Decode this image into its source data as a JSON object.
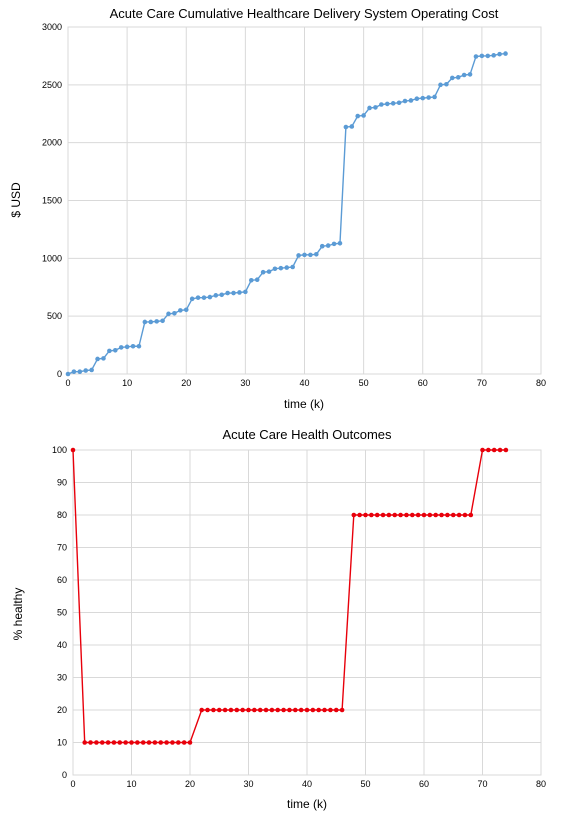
{
  "chart_data": [
    {
      "type": "line",
      "title": "Acute Care Cumulative Healthcare Delivery System Operating Cost",
      "xlabel": "time (k)",
      "ylabel": "$ USD",
      "xlim": [
        0,
        80
      ],
      "ylim": [
        0,
        3000
      ],
      "x_ticks": [
        "0",
        "10",
        "20",
        "30",
        "40",
        "50",
        "60",
        "70",
        "80"
      ],
      "y_ticks": [
        "0",
        "500",
        "1000",
        "1500",
        "2000",
        "2500",
        "3000"
      ],
      "grid": true,
      "legend": "none",
      "series": [
        {
          "color": "#5b9bd5",
          "x": [
            0,
            1,
            2,
            3,
            4,
            5,
            6,
            7,
            8,
            9,
            10,
            11,
            12,
            13,
            14,
            15,
            16,
            17,
            18,
            19,
            20,
            21,
            22,
            23,
            24,
            25,
            26,
            27,
            28,
            29,
            30,
            31,
            32,
            33,
            34,
            35,
            36,
            37,
            38,
            39,
            40,
            41,
            42,
            43,
            44,
            45,
            46,
            47,
            48,
            49,
            50,
            51,
            52,
            53,
            54,
            55,
            56,
            57,
            58,
            59,
            60,
            61,
            62,
            63,
            64,
            65,
            66,
            67,
            68,
            69,
            70,
            71,
            72,
            73,
            74
          ],
          "y": [
            0,
            20,
            20,
            30,
            35,
            130,
            135,
            200,
            205,
            230,
            235,
            240,
            240,
            450,
            450,
            455,
            460,
            520,
            525,
            550,
            555,
            650,
            660,
            660,
            665,
            680,
            685,
            700,
            700,
            705,
            710,
            810,
            815,
            880,
            885,
            910,
            915,
            920,
            925,
            1025,
            1030,
            1030,
            1035,
            1105,
            1110,
            1125,
            1130,
            2135,
            2140,
            2230,
            2235,
            2300,
            2305,
            2330,
            2335,
            2340,
            2345,
            2360,
            2365,
            2380,
            2385,
            2390,
            2395,
            2500,
            2505,
            2560,
            2565,
            2585,
            2590,
            2745,
            2750,
            2750,
            2755,
            2765,
            2770
          ]
        }
      ]
    },
    {
      "type": "line",
      "title": "Acute Care Health Outcomes",
      "xlabel": "time (k)",
      "ylabel": "% healthy",
      "xlim": [
        0,
        80
      ],
      "ylim": [
        0,
        100
      ],
      "x_ticks": [
        "0",
        "10",
        "20",
        "30",
        "40",
        "50",
        "60",
        "70",
        "80"
      ],
      "y_ticks": [
        "0",
        "10",
        "20",
        "30",
        "40",
        "50",
        "60",
        "70",
        "80",
        "90",
        "100"
      ],
      "grid": true,
      "legend": "none",
      "series": [
        {
          "color": "#e8000b",
          "x": [
            0,
            2,
            3,
            4,
            5,
            6,
            7,
            8,
            9,
            10,
            11,
            12,
            13,
            14,
            15,
            16,
            17,
            18,
            19,
            20,
            22,
            23,
            24,
            25,
            26,
            27,
            28,
            29,
            30,
            31,
            32,
            33,
            34,
            35,
            36,
            37,
            38,
            39,
            40,
            41,
            42,
            43,
            44,
            45,
            46,
            48,
            49,
            50,
            51,
            52,
            53,
            54,
            55,
            56,
            57,
            58,
            59,
            60,
            61,
            62,
            63,
            64,
            65,
            66,
            67,
            68,
            70,
            71,
            72,
            73,
            74
          ],
          "y": [
            100,
            10,
            10,
            10,
            10,
            10,
            10,
            10,
            10,
            10,
            10,
            10,
            10,
            10,
            10,
            10,
            10,
            10,
            10,
            10,
            20,
            20,
            20,
            20,
            20,
            20,
            20,
            20,
            20,
            20,
            20,
            20,
            20,
            20,
            20,
            20,
            20,
            20,
            20,
            20,
            20,
            20,
            20,
            20,
            20,
            80,
            80,
            80,
            80,
            80,
            80,
            80,
            80,
            80,
            80,
            80,
            80,
            80,
            80,
            80,
            80,
            80,
            80,
            80,
            80,
            80,
            100,
            100,
            100,
            100,
            100
          ]
        }
      ]
    }
  ]
}
